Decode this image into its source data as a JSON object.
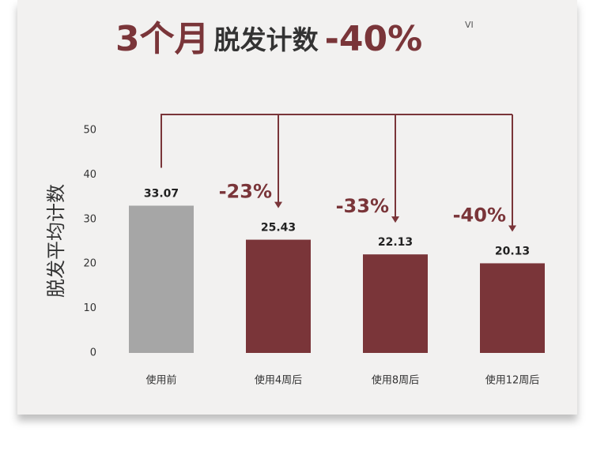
{
  "chart_data": {
    "type": "bar",
    "title_parts": [
      "3个月",
      "脱发计数",
      "-40%"
    ],
    "title_note": "VI",
    "ylabel": "脱发平均计数",
    "categories": [
      "使用前",
      "使用4周后",
      "使用8周后",
      "使用12周后"
    ],
    "values": [
      33.07,
      25.43,
      22.13,
      20.13
    ],
    "colors": [
      "#a6a6a6",
      "#7a3539",
      "#7a3539",
      "#7a3539"
    ],
    "annotations": [
      "-23%",
      "-33%",
      "-40%"
    ],
    "ylim": [
      0,
      50
    ],
    "yticks": [
      0,
      10,
      20,
      30,
      40,
      50
    ],
    "grid": false
  }
}
